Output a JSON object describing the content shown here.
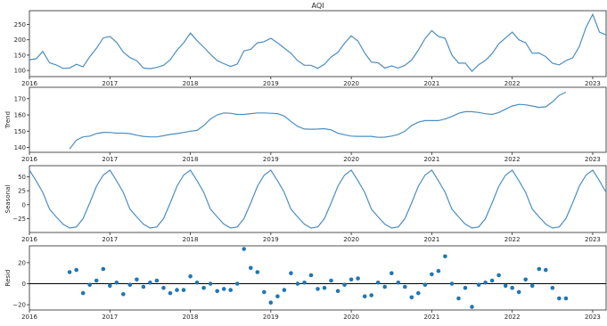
{
  "colors": {
    "line": "#4c8ec2",
    "point": "#1f77b4",
    "axis": "#262626",
    "zero_line": "#000000"
  },
  "chart_data": [
    {
      "type": "line",
      "title": "AQI",
      "ylabel": "",
      "ylim": [
        80,
        295
      ],
      "yticks": [
        "100",
        "150",
        "200",
        "250"
      ],
      "xticks": [
        "2016",
        "2017",
        "2018",
        "2019",
        "2020",
        "2021",
        "2022",
        "2023"
      ],
      "xlim": [
        "2016-01",
        "2023-03"
      ],
      "grid": false,
      "series": [
        {
          "x_start": "2016-01",
          "values": [
            135,
            138,
            162,
            125,
            118,
            107,
            108,
            120,
            112,
            145,
            172,
            206,
            211,
            192,
            160,
            142,
            132,
            108,
            106,
            110,
            117,
            135,
            166,
            190,
            222,
            197,
            176,
            153,
            132,
            122,
            113,
            121,
            164,
            169,
            190,
            194,
            205,
            190,
            173,
            156,
            132,
            117,
            117,
            107,
            120,
            144,
            159,
            189,
            213,
            196,
            157,
            127,
            125,
            108,
            115,
            108,
            117,
            134,
            166,
            204,
            230,
            211,
            205,
            150,
            124,
            124,
            97,
            119,
            133,
            155,
            187,
            206,
            225,
            200,
            190,
            156,
            157,
            145,
            124,
            118,
            132,
            141,
            178,
            240,
            283,
            225,
            216
          ]
        }
      ]
    },
    {
      "type": "line",
      "title": "",
      "ylabel": "Trend",
      "ylim": [
        137,
        177
      ],
      "yticks": [
        "140",
        "150",
        "160",
        "170"
      ],
      "xticks": [
        "2016",
        "2017",
        "2018",
        "2019",
        "2020",
        "2021",
        "2022",
        "2023"
      ],
      "xlim": [
        "2016-01",
        "2023-03"
      ],
      "grid": false,
      "series": [
        {
          "x_start": "2016-07",
          "values": [
            139,
            144.5,
            146.5,
            147,
            148.5,
            149.3,
            149.2,
            148.8,
            148.8,
            148.5,
            147.5,
            146.8,
            146.5,
            146.5,
            147.2,
            148,
            148.5,
            149.2,
            150,
            150.5,
            153.5,
            157.5,
            160,
            161.2,
            161,
            160.3,
            160.3,
            160.8,
            161.2,
            161.2,
            161,
            160.8,
            159.3,
            156,
            153,
            151.3,
            151.2,
            151.3,
            151.5,
            150.8,
            148.8,
            147.8,
            147,
            146.8,
            146.8,
            146.8,
            146.2,
            146.3,
            147,
            148,
            150,
            153.5,
            155.5,
            156.5,
            156.5,
            156.5,
            157.5,
            159,
            161,
            162,
            162,
            161.5,
            160.7,
            160.3,
            161.5,
            163.5,
            165.5,
            166.5,
            166.2,
            165.5,
            164.6,
            165,
            168,
            172,
            174
          ]
        }
      ]
    },
    {
      "type": "line",
      "title": "",
      "ylabel": "Seasonal",
      "ylim": [
        -50,
        70
      ],
      "yticks": [
        "−25",
        "0",
        "25",
        "50"
      ],
      "xticks": [
        "2016",
        "2017",
        "2018",
        "2019",
        "2020",
        "2021",
        "2022",
        "2023"
      ],
      "xlim": [
        "2016-01",
        "2023-03"
      ],
      "grid": false,
      "series": [
        {
          "x_start": "2016-01",
          "values": [
            62,
            43,
            22,
            -8,
            -22,
            -35,
            -42,
            -40,
            -25,
            3,
            33,
            53,
            62,
            43,
            22,
            -8,
            -22,
            -35,
            -42,
            -40,
            -25,
            3,
            33,
            53,
            62,
            43,
            22,
            -8,
            -22,
            -35,
            -42,
            -40,
            -25,
            3,
            33,
            53,
            62,
            43,
            22,
            -8,
            -22,
            -35,
            -42,
            -40,
            -25,
            3,
            33,
            53,
            62,
            43,
            22,
            -8,
            -22,
            -35,
            -42,
            -40,
            -25,
            3,
            33,
            53,
            62,
            43,
            22,
            -8,
            -22,
            -35,
            -42,
            -40,
            -25,
            3,
            33,
            53,
            62,
            43,
            22,
            -8,
            -22,
            -35,
            -42,
            -40,
            -25,
            3,
            33,
            53,
            62,
            43,
            22
          ]
        }
      ]
    },
    {
      "type": "scatter",
      "title": "",
      "ylabel": "Resid",
      "ylim": [
        -25,
        36
      ],
      "yticks": [
        "−20",
        "0",
        "20"
      ],
      "xticks": [
        "2016",
        "2017",
        "2018",
        "2019",
        "2020",
        "2021",
        "2022",
        "2023"
      ],
      "xlim": [
        "2016-01",
        "2023-03"
      ],
      "grid": false,
      "zero_line": 0,
      "series": [
        {
          "x_start": "2016-07",
          "values": [
            11,
            13,
            -9,
            -1,
            3,
            14,
            -2,
            1,
            -10,
            -1,
            4,
            -3,
            1,
            3,
            -4,
            -9,
            -6,
            -6,
            7,
            1,
            -4,
            0,
            -7,
            -5,
            -6,
            0,
            33,
            15,
            11,
            -8,
            -18,
            -12,
            -6,
            10,
            0,
            1,
            8,
            -5,
            -4,
            3,
            -7,
            -1,
            4,
            5,
            -12,
            -11,
            1,
            -3,
            10,
            1,
            -3,
            -13,
            -9,
            -1,
            9,
            12,
            26,
            0,
            -14,
            -4,
            -22,
            -1,
            1,
            3,
            8,
            -2,
            -4,
            -8,
            4,
            -2,
            14,
            13,
            -4,
            -14,
            -14
          ]
        }
      ]
    }
  ]
}
